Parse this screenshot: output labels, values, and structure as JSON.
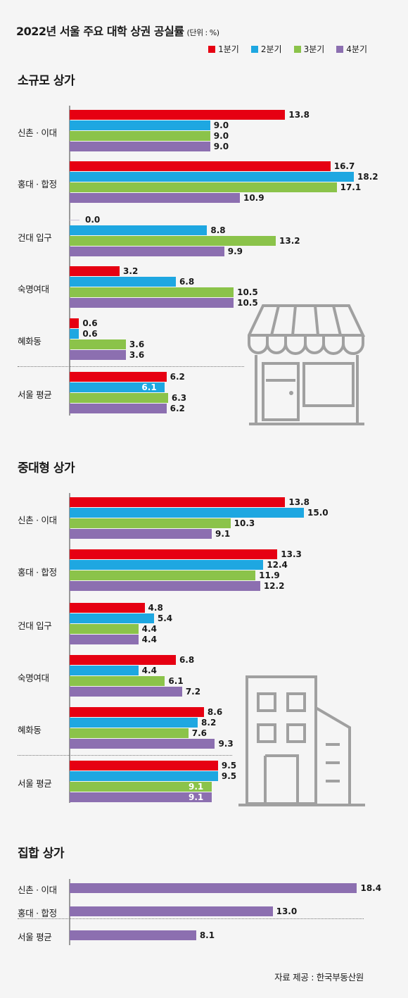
{
  "title": "2022년 서울 주요 대학 상권 공실률",
  "unit": "(단위 : %)",
  "legend": [
    "1분기",
    "2분기",
    "3분기",
    "4분기"
  ],
  "colors": [
    "#e60012",
    "#1ea7e1",
    "#8bc34a",
    "#8c6fb0"
  ],
  "source": "자료 제공 : 한국부동산원",
  "chart_data": [
    {
      "type": "bar",
      "orientation": "horizontal",
      "title": "소규모 상가",
      "categories": [
        "신촌 · 이대",
        "홍대 · 합정",
        "건대 입구",
        "숙명여대",
        "혜화동",
        "서울 평균"
      ],
      "series": [
        {
          "name": "1분기",
          "values": [
            13.8,
            16.7,
            0.0,
            3.2,
            0.6,
            6.2
          ]
        },
        {
          "name": "2분기",
          "values": [
            9.0,
            18.2,
            8.8,
            6.8,
            0.6,
            6.1
          ]
        },
        {
          "name": "3분기",
          "values": [
            9.0,
            17.1,
            13.2,
            10.5,
            3.6,
            6.3
          ]
        },
        {
          "name": "4분기",
          "values": [
            9.0,
            10.9,
            9.9,
            10.5,
            3.6,
            6.2
          ]
        }
      ],
      "value_labels": [
        [
          "13.8",
          "16.7",
          "0.0",
          "3.2",
          "0.6",
          "6.2"
        ],
        [
          "9.0",
          "18.2",
          "8.8",
          "6.8",
          "0.6",
          "6.1"
        ],
        [
          "9.0",
          "17.1",
          "13.2",
          "10.5",
          "3.6",
          "6.3"
        ],
        [
          "9.0",
          "10.9",
          "9.9",
          "10.5",
          "3.6",
          "6.2"
        ]
      ],
      "legend_placement": "top-right",
      "grid": false
    },
    {
      "type": "bar",
      "orientation": "horizontal",
      "title": "중대형 상가",
      "categories": [
        "신촌 · 이대",
        "홍대 · 합정",
        "건대 입구",
        "숙명여대",
        "혜화동",
        "서울 평균"
      ],
      "series": [
        {
          "name": "1분기",
          "values": [
            13.8,
            13.3,
            4.8,
            6.8,
            8.6,
            9.5
          ]
        },
        {
          "name": "2분기",
          "values": [
            15.0,
            12.4,
            5.4,
            4.4,
            8.2,
            9.5
          ]
        },
        {
          "name": "3분기",
          "values": [
            10.3,
            11.9,
            4.4,
            6.1,
            7.6,
            9.1
          ]
        },
        {
          "name": "4분기",
          "values": [
            9.1,
            12.2,
            4.4,
            7.2,
            9.3,
            9.1
          ]
        }
      ],
      "value_labels": [
        [
          "13.8",
          "13.3",
          "4.8",
          "6.8",
          "8.6",
          "9.5"
        ],
        [
          "15.0",
          "12.4",
          "5.4",
          "4.4",
          "8.2",
          "9.5"
        ],
        [
          "10.3",
          "11.9",
          "4.4",
          "6.1",
          "7.6",
          "9.1"
        ],
        [
          "9.1",
          "12.2",
          "4.4",
          "7.2",
          "9.3",
          "9.1"
        ]
      ],
      "legend_placement": "top-right",
      "grid": false
    },
    {
      "type": "bar",
      "orientation": "horizontal",
      "title": "집합 상가",
      "categories": [
        "신촌 · 이대",
        "홍대 · 합정",
        "서울 평균"
      ],
      "series": [
        {
          "name": "4분기",
          "values": [
            18.4,
            13.0,
            8.1
          ]
        }
      ],
      "value_labels": [
        [
          "18.4",
          "13.0",
          "8.1"
        ]
      ],
      "legend_placement": "top-right",
      "grid": false
    }
  ]
}
